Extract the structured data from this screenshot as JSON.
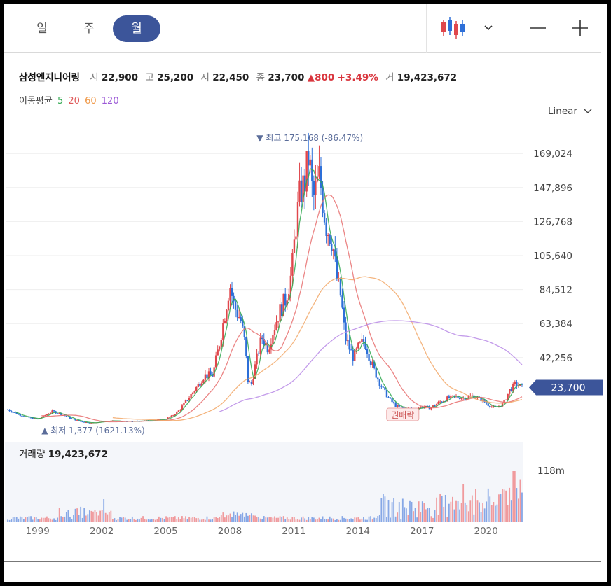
{
  "toolbar": {
    "tabs": [
      {
        "label": "일",
        "active": false
      },
      {
        "label": "주",
        "active": false
      },
      {
        "label": "월",
        "active": true
      }
    ],
    "chart_type_icon": "candlestick-icon",
    "dropdown_icon": "chevron-down-icon",
    "zoom_out_icon": "minus-icon",
    "zoom_in_icon": "plus-icon"
  },
  "quote": {
    "name": "삼성엔지니어링",
    "open_label": "시",
    "open": "22,900",
    "high_label": "고",
    "high": "25,200",
    "low_label": "저",
    "low": "22,450",
    "close_label": "종",
    "close": "23,700",
    "change": "800",
    "change_pct": "+3.49%",
    "volume_label": "거",
    "volume": "19,423,672"
  },
  "moving_average": {
    "label": "이동평균",
    "periods": [
      {
        "value": "5",
        "color": "#2fa84f"
      },
      {
        "value": "20",
        "color": "#e05a5a"
      },
      {
        "value": "60",
        "color": "#f09a4a"
      },
      {
        "value": "120",
        "color": "#9b59d6"
      }
    ]
  },
  "scale": {
    "label": "Linear"
  },
  "colors": {
    "up": "#e0474c",
    "down": "#2d6fd8",
    "accent": "#3c559a"
  },
  "annotations": {
    "max_label": "▼ 최고",
    "max_value": "175,168 (-86.47%)",
    "min_label": "▲ 최저",
    "min_value": "1,377 (1621.13%)",
    "event_label": "권배락",
    "last_price_badge": "23,700"
  },
  "volume_panel": {
    "label": "거래량",
    "value": "19,423,672",
    "axis_label": "118m"
  },
  "chart_data": {
    "type": "candlestick",
    "y_ticks": [
      "169,024",
      "147,896",
      "126,768",
      "105,640",
      "84,512",
      "63,384",
      "42,256"
    ],
    "ylim": [
      0,
      190000
    ],
    "x_ticks": [
      "1999",
      "2002",
      "2005",
      "2008",
      "2011",
      "2014",
      "2017",
      "2020"
    ],
    "xlim": [
      1997.5,
      2021.75
    ],
    "close_series": [
      [
        1997.6,
        10000
      ],
      [
        1998.0,
        7500
      ],
      [
        1998.5,
        5200
      ],
      [
        1999.0,
        4100
      ],
      [
        1999.4,
        6800
      ],
      [
        1999.7,
        8900
      ],
      [
        2000.1,
        7200
      ],
      [
        2000.6,
        4200
      ],
      [
        2001.0,
        2600
      ],
      [
        2001.5,
        1700
      ],
      [
        2002.0,
        2500
      ],
      [
        2002.5,
        3000
      ],
      [
        2003.0,
        2600
      ],
      [
        2003.5,
        2700
      ],
      [
        2004.0,
        3100
      ],
      [
        2004.5,
        3300
      ],
      [
        2005.0,
        4200
      ],
      [
        2005.3,
        6000
      ],
      [
        2005.6,
        9200
      ],
      [
        2006.0,
        16000
      ],
      [
        2006.4,
        23000
      ],
      [
        2006.8,
        31000
      ],
      [
        2007.2,
        31500
      ],
      [
        2007.5,
        50000
      ],
      [
        2007.8,
        72000
      ],
      [
        2008.0,
        88000
      ],
      [
        2008.2,
        74000
      ],
      [
        2008.5,
        66000
      ],
      [
        2008.7,
        52000
      ],
      [
        2008.85,
        28000
      ],
      [
        2009.0,
        25000
      ],
      [
        2009.2,
        38000
      ],
      [
        2009.5,
        55000
      ],
      [
        2009.8,
        48000
      ],
      [
        2010.0,
        58000
      ],
      [
        2010.3,
        70000
      ],
      [
        2010.6,
        78000
      ],
      [
        2010.9,
        95000
      ],
      [
        2011.1,
        125000
      ],
      [
        2011.3,
        145000
      ],
      [
        2011.5,
        150000
      ],
      [
        2011.7,
        168000
      ],
      [
        2011.9,
        140000
      ],
      [
        2012.2,
        155000
      ],
      [
        2012.5,
        125000
      ],
      [
        2012.8,
        115000
      ],
      [
        2013.0,
        92000
      ],
      [
        2013.2,
        80000
      ],
      [
        2013.4,
        55000
      ],
      [
        2013.6,
        48000
      ],
      [
        2013.8,
        42000
      ],
      [
        2014.0,
        48000
      ],
      [
        2014.3,
        53000
      ],
      [
        2014.6,
        40000
      ],
      [
        2014.9,
        30000
      ],
      [
        2015.2,
        22000
      ],
      [
        2015.5,
        16000
      ],
      [
        2015.8,
        12000
      ],
      [
        2016.2,
        10500
      ],
      [
        2016.6,
        10200
      ],
      [
        2017.0,
        11800
      ],
      [
        2017.4,
        11000
      ],
      [
        2017.8,
        14500
      ],
      [
        2018.2,
        17000
      ],
      [
        2018.6,
        18000
      ],
      [
        2019.0,
        17200
      ],
      [
        2019.4,
        18600
      ],
      [
        2019.8,
        16000
      ],
      [
        2020.1,
        13000
      ],
      [
        2020.4,
        11000
      ],
      [
        2020.8,
        13500
      ],
      [
        2021.1,
        22000
      ],
      [
        2021.4,
        26000
      ],
      [
        2021.7,
        23700
      ]
    ],
    "series": [
      {
        "name": "MA5",
        "values": []
      },
      {
        "name": "MA20",
        "values": []
      },
      {
        "name": "MA60",
        "values": []
      },
      {
        "name": "MA120",
        "values": []
      }
    ],
    "volume_max_label": "118m",
    "grid": true
  }
}
